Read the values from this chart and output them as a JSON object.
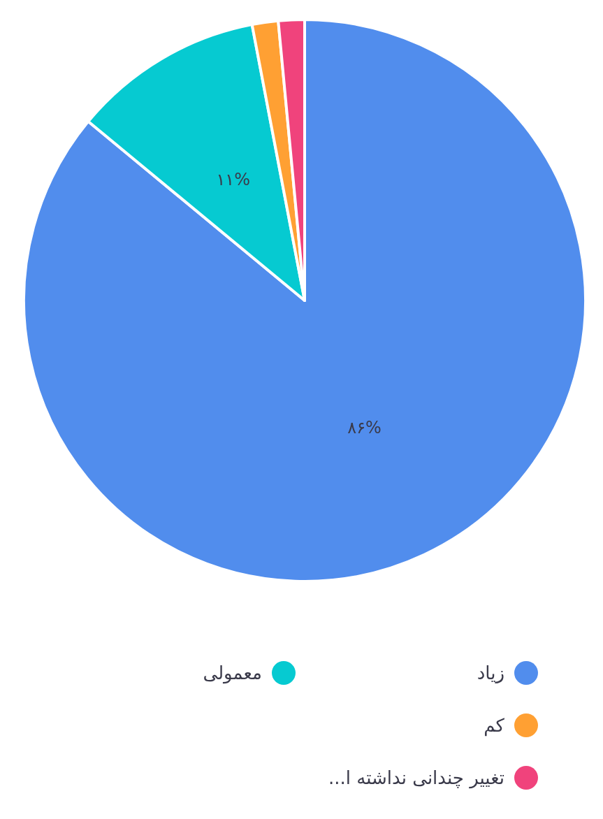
{
  "chart_data": {
    "type": "pie",
    "categories": [
      "زیاد",
      "معمولی",
      "کم",
      "تغییر چندانی نداشته ا..."
    ],
    "values": [
      86,
      11,
      1.5,
      1.5
    ],
    "colors": [
      "#518ded",
      "#06cad1",
      "#ffa033",
      "#f0437c"
    ],
    "value_labels": [
      "۸۶%",
      "۱۱%",
      null,
      null
    ],
    "legend": "bottom"
  }
}
